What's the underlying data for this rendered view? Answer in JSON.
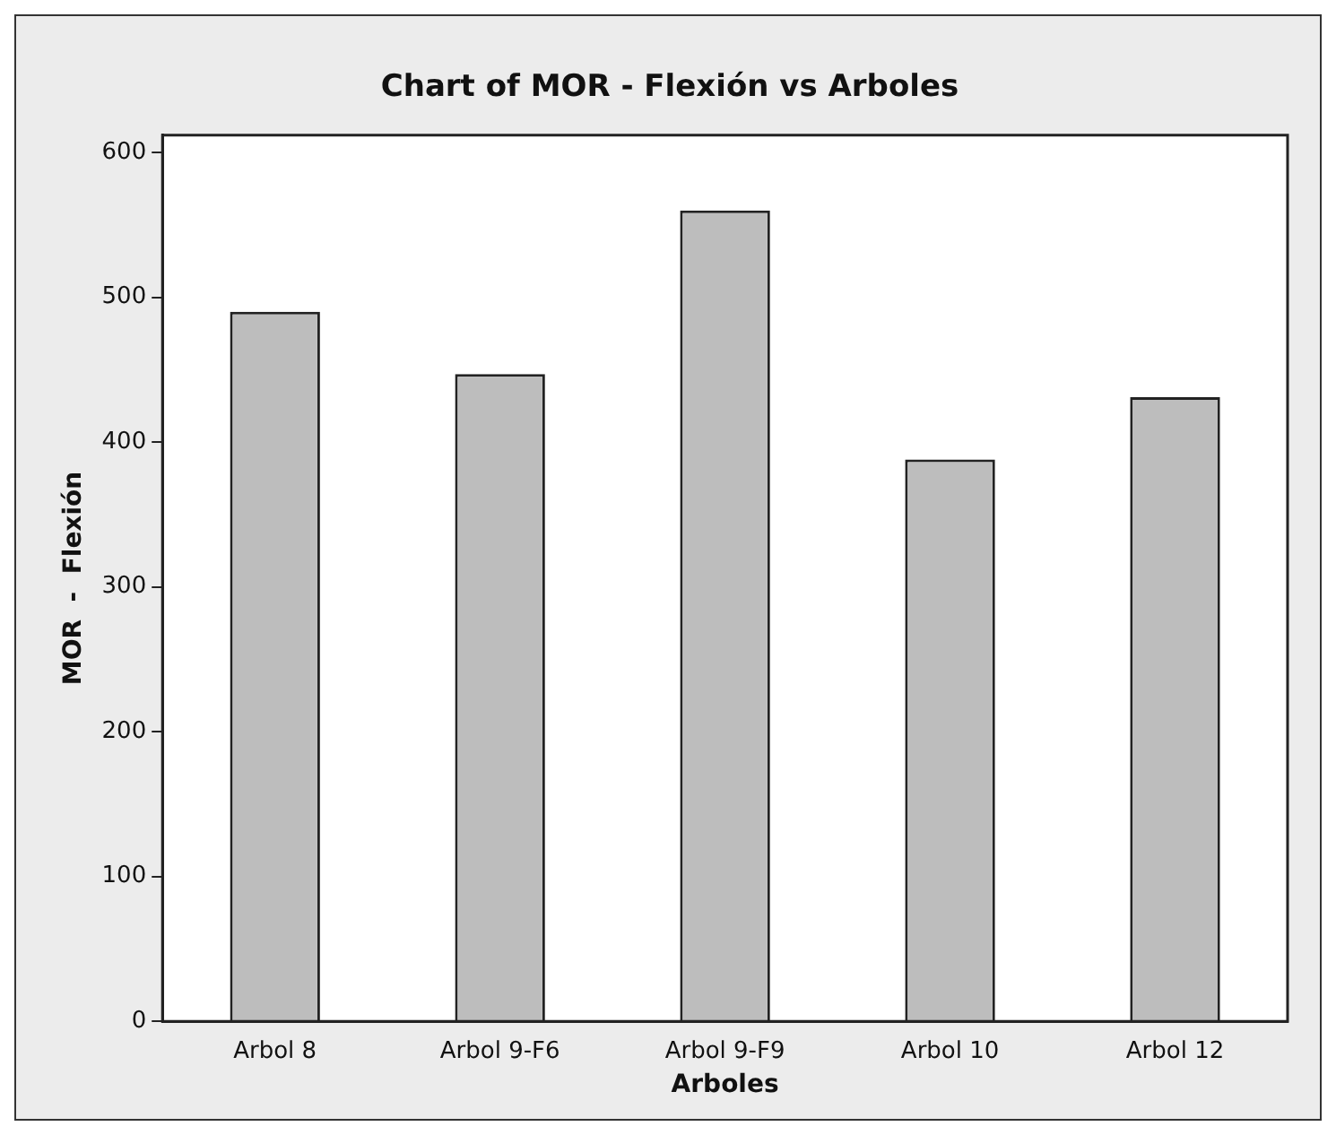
{
  "chart_data": {
    "type": "bar",
    "title": "Chart of MOR - Flexión vs Arboles",
    "xlabel": "Arboles",
    "ylabel": "MOR  -  Flexión",
    "categories": [
      "Arbol 8",
      "Arbol 9-F6",
      "Arbol 9-F9",
      "Arbol 10",
      "Arbol 12"
    ],
    "values": [
      490,
      447,
      560,
      388,
      431
    ],
    "color": "#bdbdbd",
    "ylim": [
      0,
      612
    ],
    "yticks": [
      0,
      100,
      200,
      300,
      400,
      500,
      600
    ],
    "grid": false,
    "legend": false
  }
}
